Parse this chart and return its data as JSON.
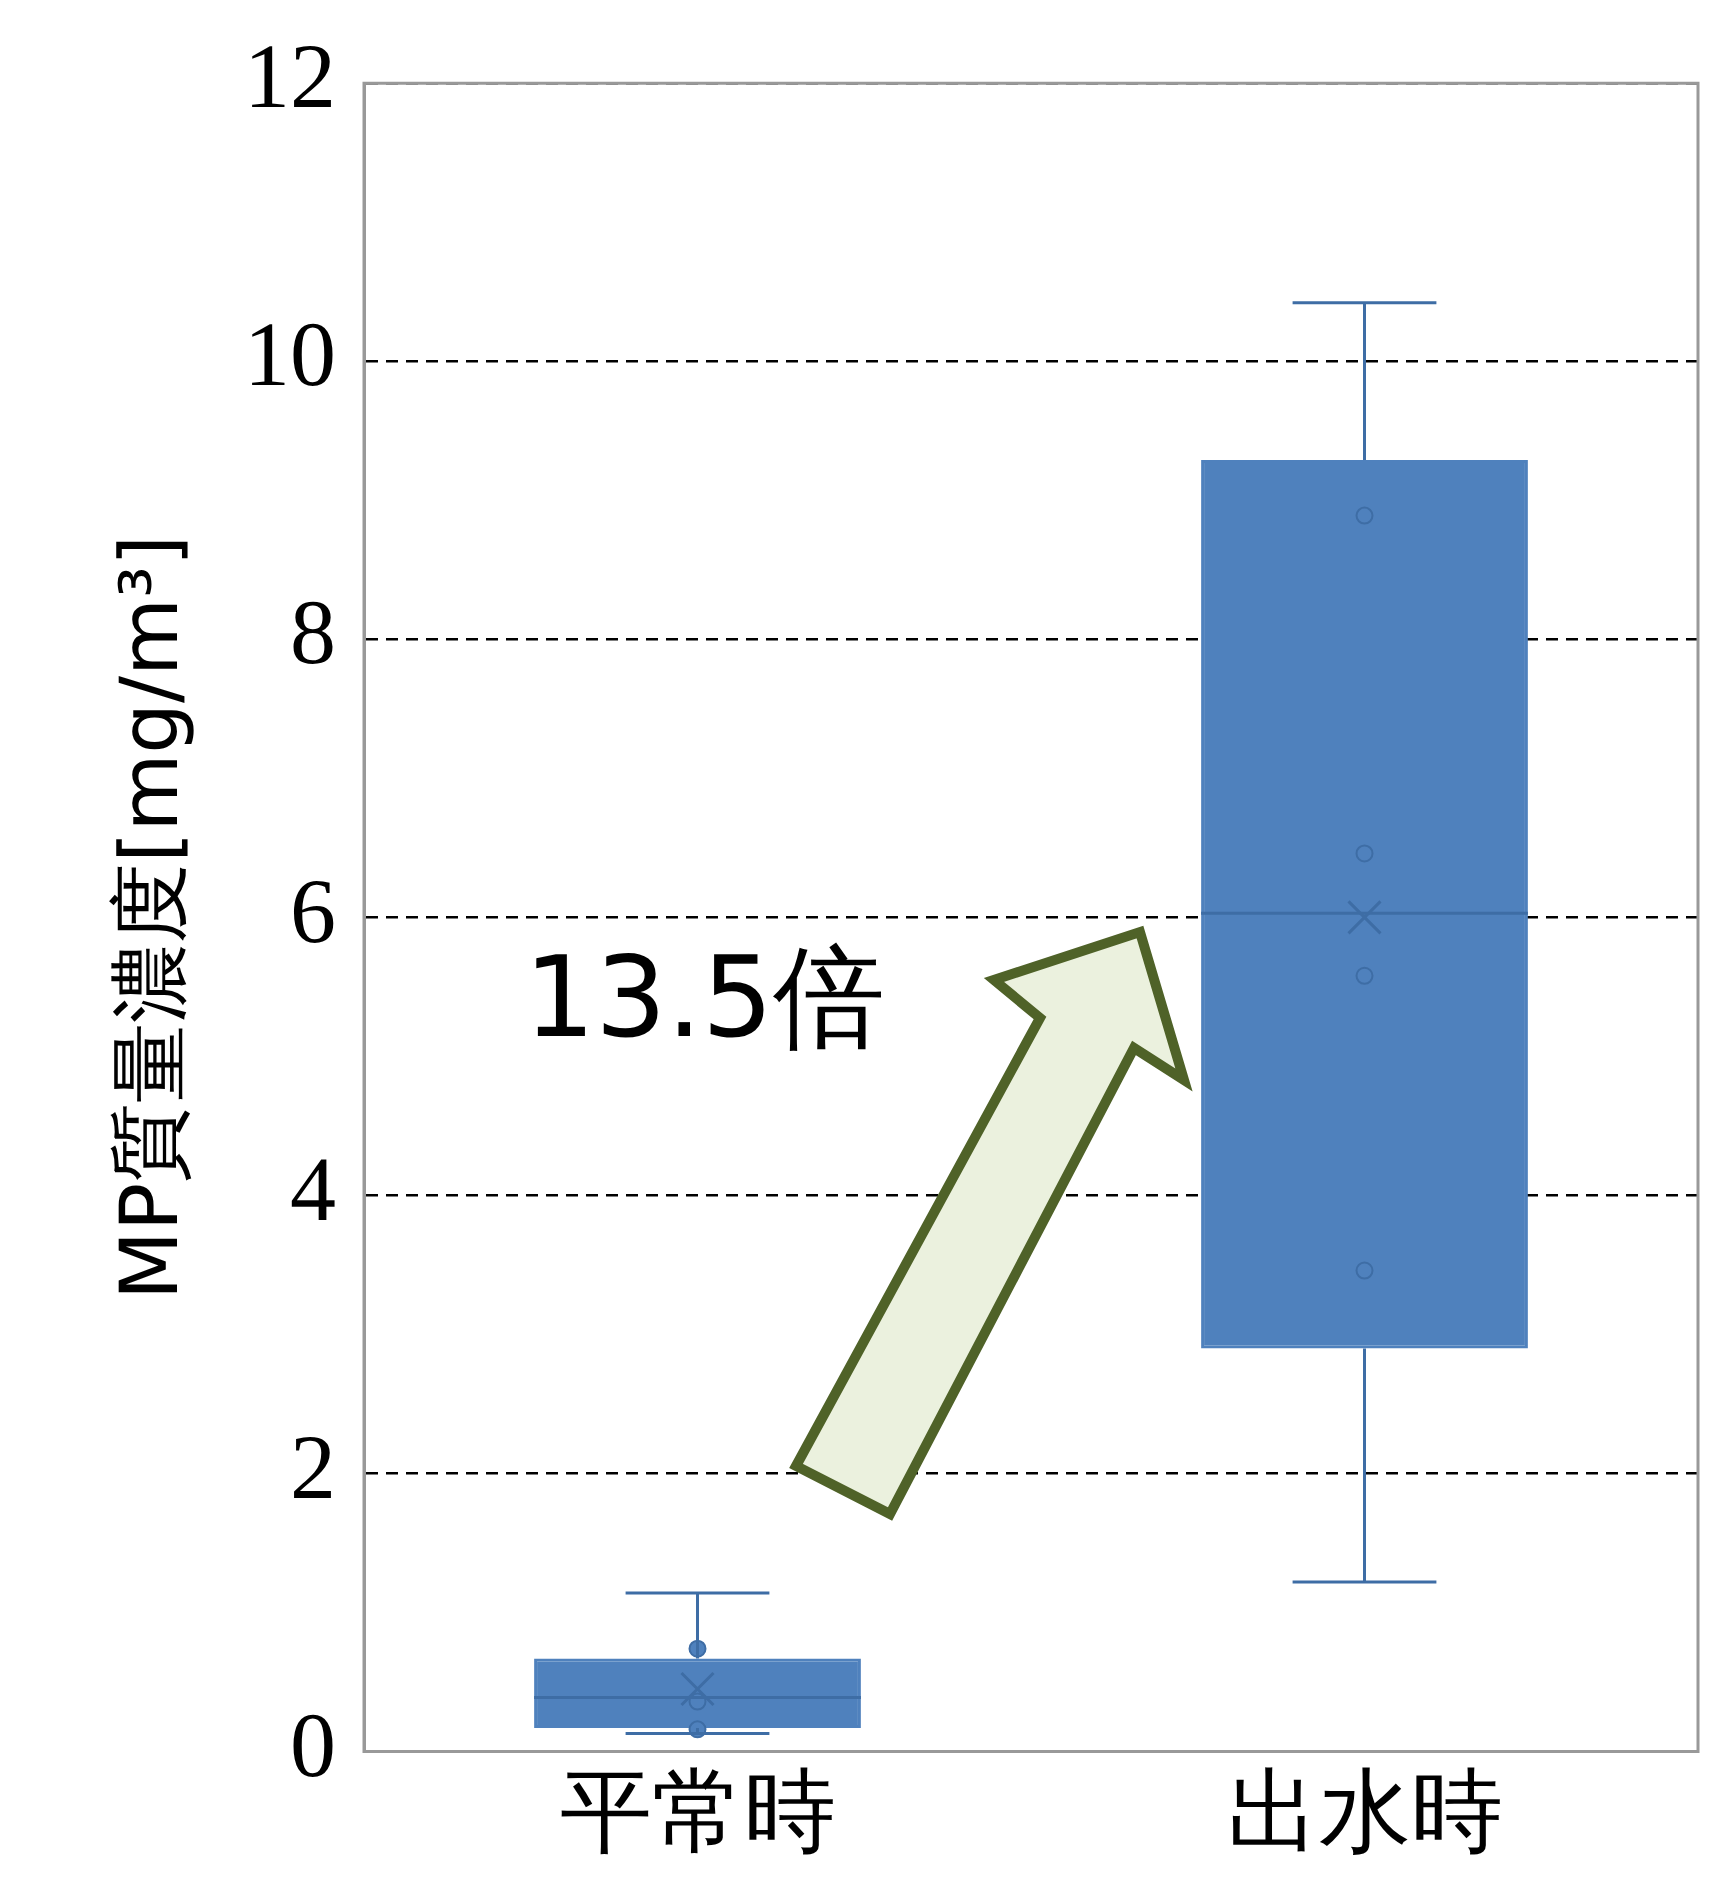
{
  "chart_data": {
    "type": "box",
    "ylabel": "MP質量濃度[mg/m³]",
    "categories": [
      "平常時",
      "出水時"
    ],
    "series": [
      {
        "color": "#4f81bd",
        "boxes": [
          {
            "low": 0.13,
            "q1": 0.17,
            "median": 0.39,
            "q3": 0.67,
            "high": 1.14,
            "mean": 0.45
          },
          {
            "low": 1.22,
            "q1": 2.9,
            "median": 6.03,
            "q3": 9.29,
            "high": 10.42,
            "mean": 6.0
          }
        ]
      },
      {
        "type": "scatter",
        "color": "#4f81bd",
        "x": [
          "平常時",
          "平常時",
          "平常時",
          "出水時",
          "出水時",
          "出水時",
          "出水時"
        ],
        "values": [
          0.74,
          0.36,
          0.16,
          8.89,
          6.46,
          5.58,
          3.46
        ]
      }
    ],
    "ylim": [
      0,
      12
    ],
    "yticks": [
      0,
      2,
      4,
      6,
      8,
      10,
      12
    ],
    "grid": "y",
    "legend": false,
    "marker": "circle",
    "annotations": [
      "13.5倍"
    ]
  }
}
